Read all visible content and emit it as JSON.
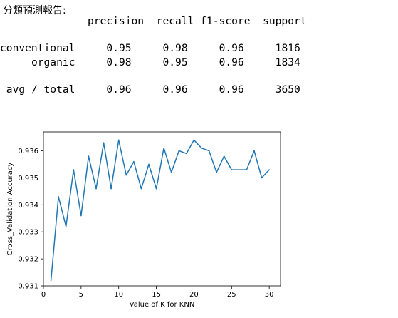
{
  "report": {
    "heading": "分類預測報告:",
    "columns": [
      "precision",
      "recall",
      "f1-score",
      "support"
    ],
    "rows": [
      {
        "label": "conventional",
        "precision": "0.95",
        "recall": "0.98",
        "f1": "0.96",
        "support": "1816"
      },
      {
        "label": "organic",
        "precision": "0.98",
        "recall": "0.95",
        "f1": "0.96",
        "support": "1834"
      },
      {
        "label": "avg / total",
        "precision": "0.96",
        "recall": "0.96",
        "f1": "0.96",
        "support": "3650"
      }
    ]
  },
  "chart_data": {
    "type": "line",
    "xlabel": "Value of K for KNN",
    "ylabel": "Cross_Validation Accuracy",
    "xlim": [
      0,
      31.5
    ],
    "ylim": [
      0.931,
      0.9367
    ],
    "xticks": [
      0,
      5,
      10,
      15,
      20,
      25,
      30
    ],
    "yticks": [
      0.931,
      0.932,
      0.933,
      0.934,
      0.935,
      0.936
    ],
    "grid": false,
    "line_color": "#1f77b4",
    "x": [
      1,
      2,
      3,
      4,
      5,
      6,
      7,
      8,
      9,
      10,
      11,
      12,
      13,
      14,
      15,
      16,
      17,
      18,
      19,
      20,
      21,
      22,
      23,
      24,
      25,
      26,
      27,
      28,
      29,
      30
    ],
    "y": [
      0.9312,
      0.9343,
      0.9332,
      0.9353,
      0.9336,
      0.9358,
      0.9346,
      0.9363,
      0.9346,
      0.9364,
      0.9351,
      0.9356,
      0.9346,
      0.9355,
      0.9346,
      0.9361,
      0.9352,
      0.936,
      0.9359,
      0.9364,
      0.9361,
      0.936,
      0.9352,
      0.9358,
      0.9353,
      0.9353,
      0.9353,
      0.936,
      0.935,
      0.9353
    ]
  }
}
